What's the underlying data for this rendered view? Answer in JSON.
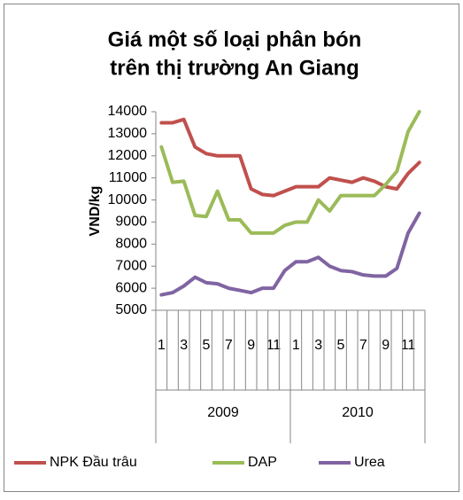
{
  "chart_data": {
    "type": "line",
    "title": [
      "Giá một số loại phân bón",
      "trên thị trường An Giang"
    ],
    "y_label": "VND/kg",
    "categories": [
      "1",
      null,
      "3",
      null,
      "5",
      null,
      "7",
      null,
      "9",
      null,
      "11",
      null,
      "1",
      null,
      "3",
      null,
      "5",
      null,
      "7",
      null,
      "9",
      null,
      "11",
      null
    ],
    "category_groups": [
      "2009",
      "2010"
    ],
    "series": [
      {
        "name": "NPK Đầu trâu",
        "color": "#c0504d",
        "values": [
          13500,
          13500,
          13650,
          12400,
          12100,
          12000,
          12000,
          12000,
          10500,
          10250,
          10200,
          10400,
          10600,
          10600,
          10600,
          11000,
          10900,
          10800,
          11000,
          10850,
          10600,
          10500,
          11200,
          11700
        ]
      },
      {
        "name": "DAP",
        "color": "#9bbb59",
        "values": [
          12400,
          10800,
          10850,
          9300,
          9250,
          10400,
          9100,
          9100,
          8500,
          8500,
          8500,
          8850,
          9000,
          9000,
          10000,
          9500,
          10200,
          10200,
          10200,
          10200,
          10700,
          11300,
          13100,
          14000
        ]
      },
      {
        "name": "Urea",
        "color": "#8064a2",
        "values": [
          5700,
          5800,
          6100,
          6500,
          6250,
          6200,
          6000,
          5900,
          5800,
          6000,
          6000,
          6800,
          7200,
          7200,
          7400,
          7000,
          6800,
          6750,
          6600,
          6550,
          6550,
          6900,
          8500,
          9400
        ]
      }
    ],
    "ylim": [
      5000,
      14000
    ],
    "yticks": [
      5000,
      6000,
      7000,
      8000,
      9000,
      10000,
      11000,
      12000,
      13000,
      14000
    ],
    "grid": false,
    "legend": "bottom"
  }
}
